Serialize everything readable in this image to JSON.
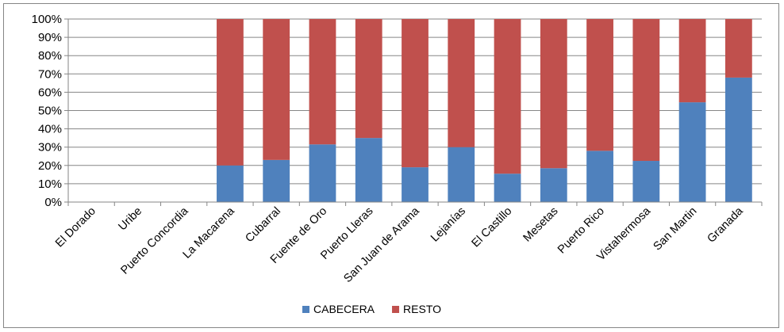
{
  "chart_data": {
    "type": "bar",
    "stacked": true,
    "percent": true,
    "categories": [
      "El Dorado",
      "Uribe",
      "Puerto Concordia",
      "La Macarena",
      "Cubarral",
      "Fuente de Oro",
      "Puerto Lleras",
      "San Juan de Arama",
      "Lejanías",
      "El Castillo",
      "Mesetas",
      "Puerto Rico",
      "Vistahermosa",
      "San Martin",
      "Granada"
    ],
    "series": [
      {
        "name": "CABECERA",
        "color": "#4F81BD",
        "values": [
          0,
          0,
          0,
          20,
          23,
          31.5,
          35,
          19,
          30,
          15.5,
          18.5,
          28,
          22.5,
          54.5,
          68
        ]
      },
      {
        "name": "RESTO",
        "color": "#C0504D",
        "values": [
          0,
          0,
          0,
          80,
          77,
          68.5,
          65,
          81,
          70,
          84.5,
          81.5,
          72,
          77.5,
          45.5,
          32
        ]
      }
    ],
    "y_ticks": [
      "0%",
      "10%",
      "20%",
      "30%",
      "40%",
      "50%",
      "60%",
      "70%",
      "80%",
      "90%",
      "100%"
    ],
    "ylim": [
      0,
      100
    ],
    "grid": true,
    "legend_position": "bottom"
  }
}
